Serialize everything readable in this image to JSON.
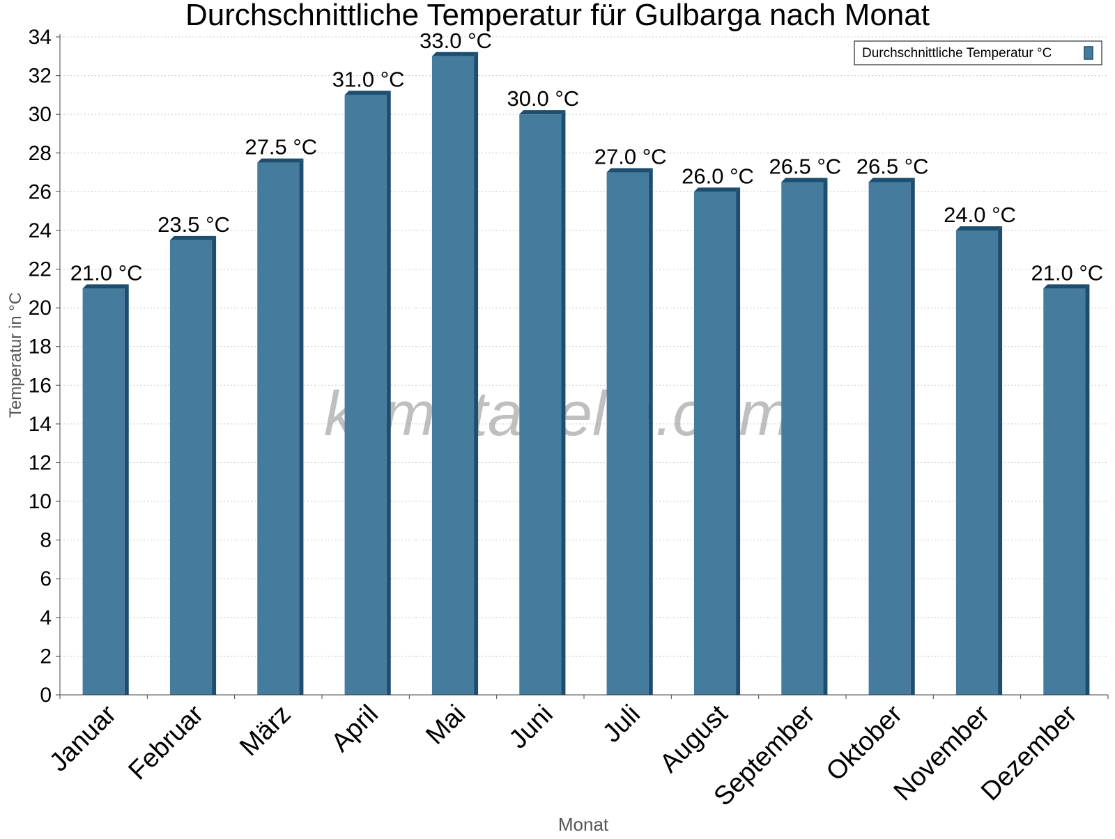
{
  "chart_data": {
    "type": "bar",
    "title": "Durchschnittliche Temperatur für Gulbarga nach Monat",
    "xlabel": "Monat",
    "ylabel": "Temperatur in °C",
    "categories": [
      "Januar",
      "Februar",
      "März",
      "April",
      "Mai",
      "Juni",
      "Juli",
      "August",
      "September",
      "Oktober",
      "November",
      "Dezember"
    ],
    "series": [
      {
        "name": "Durchschnittliche Temperatur °C",
        "values": [
          21.0,
          23.5,
          27.5,
          31.0,
          33.0,
          30.0,
          27.0,
          26.0,
          26.5,
          26.5,
          24.0,
          21.0
        ],
        "labels": [
          "21.0 °C",
          "23.5 °C",
          "27.5 °C",
          "31.0 °C",
          "33.0 °C",
          "30.0 °C",
          "27.0 °C",
          "26.0 °C",
          "26.5 °C",
          "26.5 °C",
          "24.0 °C",
          "21.0 °C"
        ],
        "color": "#457b9d",
        "edge_color": "#1d4e6f"
      }
    ],
    "ylim": [
      0,
      34
    ],
    "yticks": [
      0,
      2,
      4,
      6,
      8,
      10,
      12,
      14,
      16,
      18,
      20,
      22,
      24,
      26,
      28,
      30,
      32,
      34
    ],
    "grid": true,
    "legend": "top-right",
    "watermark": "klimatabelle.com"
  }
}
